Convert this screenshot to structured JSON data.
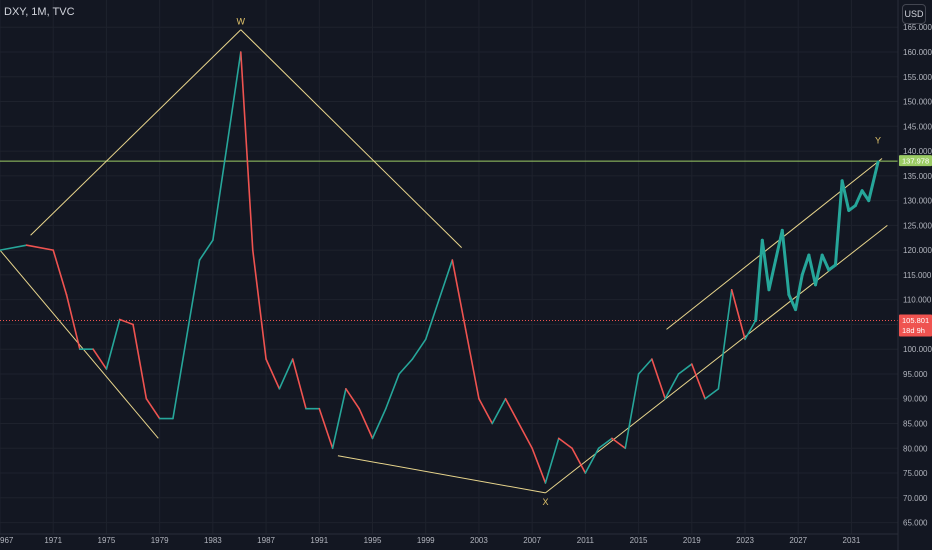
{
  "header": {
    "symbol": "DXY, 1M, TVC",
    "currency": "USD"
  },
  "colors": {
    "background": "#131722",
    "grid": "#1e222d",
    "axis_text": "#b2b5be",
    "up": "#26a69a",
    "down": "#ef5350",
    "projection": "#26a69a",
    "trendline": "#e8d58c",
    "channel": "#e8d58c",
    "resistance": "#9ccc65",
    "current_price_line": "#ef5350"
  },
  "chart_data": {
    "type": "line",
    "title": "",
    "xlabel": "",
    "ylabel": "",
    "x_ticks": [
      "967",
      "1971",
      "1975",
      "1979",
      "1983",
      "1987",
      "1991",
      "1995",
      "1999",
      "2003",
      "2007",
      "2011",
      "2015",
      "2019",
      "2023",
      "2027",
      "2031"
    ],
    "y_ticks": [
      "65.000",
      "70.000",
      "75.000",
      "80.000",
      "85.000",
      "90.000",
      "95.000",
      "100.000",
      "105.000",
      "110.000",
      "115.000",
      "120.000",
      "125.000",
      "130.000",
      "135.000",
      "140.000",
      "145.000",
      "150.000",
      "155.000",
      "160.000",
      "165.000"
    ],
    "xlim": [
      1967,
      2034.5
    ],
    "ylim": [
      63.5,
      170.5
    ],
    "series": [
      {
        "kind": "history",
        "x": [
          1967,
          1969,
          1971,
          1972,
          1973,
          1974,
          1975,
          1976,
          1977,
          1978,
          1979,
          1980,
          1981,
          1982,
          1983,
          1984,
          1985.1,
          1986,
          1987,
          1988,
          1989,
          1990,
          1991,
          1992,
          1993,
          1994,
          1995,
          1996,
          1997,
          1998,
          1999,
          2000,
          2001,
          2002,
          2003,
          2004,
          2005,
          2006,
          2007,
          2008,
          2009,
          2010,
          2011,
          2012,
          2013,
          2014,
          2015,
          2016,
          2017,
          2018,
          2019,
          2020,
          2021,
          2022,
          2023,
          2023.8
        ],
        "y": [
          120,
          121,
          120,
          111,
          100,
          100,
          96,
          106,
          105,
          90,
          86,
          86,
          102,
          118,
          122,
          140,
          160,
          120,
          98,
          92,
          98,
          88,
          88,
          80,
          92,
          88,
          82,
          88,
          95,
          98,
          102,
          110,
          118,
          104,
          90,
          85,
          90,
          85,
          80,
          73,
          82,
          80,
          75,
          80,
          82,
          80,
          95,
          98,
          90,
          95,
          97,
          90,
          92,
          112,
          102,
          105.8
        ]
      },
      {
        "kind": "projection",
        "x": [
          2023.8,
          2024.3,
          2024.8,
          2025.3,
          2025.8,
          2026.3,
          2026.8,
          2027.3,
          2027.8,
          2028.3,
          2028.8,
          2029.3,
          2029.8,
          2030.3,
          2030.8,
          2031.3,
          2031.8,
          2032.3,
          2033
        ],
        "y": [
          105.8,
          122,
          112,
          118,
          124,
          111,
          108,
          115,
          119,
          113,
          119,
          116,
          117,
          134,
          128,
          129,
          132,
          130,
          137.8
        ]
      }
    ],
    "annotations": [
      {
        "label": "W",
        "x": 1985.1,
        "y": 164.5
      },
      {
        "label": "X",
        "x": 2008.0,
        "y": 71.0
      },
      {
        "label": "Y",
        "x": 2033.0,
        "y": 140.5
      }
    ],
    "trendlines": [
      {
        "x1": 1969.3,
        "y1": 123,
        "x2": 1985.1,
        "y2": 164.5
      },
      {
        "x1": 1985.1,
        "y1": 164.5,
        "x2": 2001.7,
        "y2": 120.5
      },
      {
        "x1": 1967,
        "y1": 120,
        "x2": 1978.9,
        "y2": 82
      },
      {
        "x1": 1992.4,
        "y1": 78.5,
        "x2": 2008.0,
        "y2": 71.0
      },
      {
        "x1": 2008.0,
        "y1": 71.0,
        "x2": 2033.7,
        "y2": 125
      },
      {
        "x1": 2017.1,
        "y1": 104,
        "x2": 2033.3,
        "y2": 138.5
      }
    ],
    "horizontal_lines": [
      {
        "name": "resistance",
        "y": 137.978
      },
      {
        "name": "current",
        "y": 105.801
      }
    ],
    "price_labels": [
      {
        "name": "resistance",
        "text": "137.978",
        "y": 137.978
      },
      {
        "name": "current",
        "text": "105.801",
        "sub": "18d 9h",
        "y": 105.801
      }
    ]
  }
}
